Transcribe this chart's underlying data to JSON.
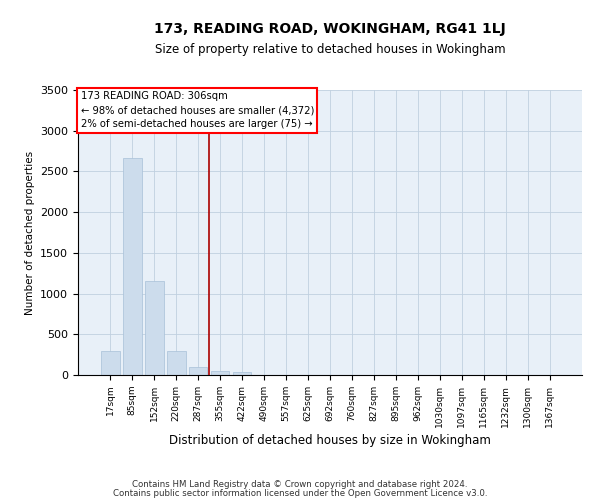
{
  "title": "173, READING ROAD, WOKINGHAM, RG41 1LJ",
  "subtitle": "Size of property relative to detached houses in Wokingham",
  "xlabel": "Distribution of detached houses by size in Wokingham",
  "ylabel": "Number of detached properties",
  "bar_color": "#ccdcec",
  "bar_edgecolor": "#a8c0d8",
  "grid_color": "#c0d0e0",
  "background_color": "#e8f0f8",
  "annotation_text": "173 READING ROAD: 306sqm\n← 98% of detached houses are smaller (4,372)\n2% of semi-detached houses are larger (75) →",
  "vline_x": 4.5,
  "vline_color": "#aa0000",
  "categories": [
    "17sqm",
    "85sqm",
    "152sqm",
    "220sqm",
    "287sqm",
    "355sqm",
    "422sqm",
    "490sqm",
    "557sqm",
    "625sqm",
    "692sqm",
    "760sqm",
    "827sqm",
    "895sqm",
    "962sqm",
    "1030sqm",
    "1097sqm",
    "1165sqm",
    "1232sqm",
    "1300sqm",
    "1367sqm"
  ],
  "values": [
    290,
    2660,
    1160,
    300,
    100,
    55,
    35,
    0,
    0,
    0,
    0,
    0,
    0,
    0,
    0,
    0,
    0,
    0,
    0,
    0,
    0
  ],
  "ylim": [
    0,
    3500
  ],
  "yticks": [
    0,
    500,
    1000,
    1500,
    2000,
    2500,
    3000,
    3500
  ],
  "footer_line1": "Contains HM Land Registry data © Crown copyright and database right 2024.",
  "footer_line2": "Contains public sector information licensed under the Open Government Licence v3.0.",
  "annotation_box_edgecolor": "red",
  "annotation_box_facecolor": "white"
}
